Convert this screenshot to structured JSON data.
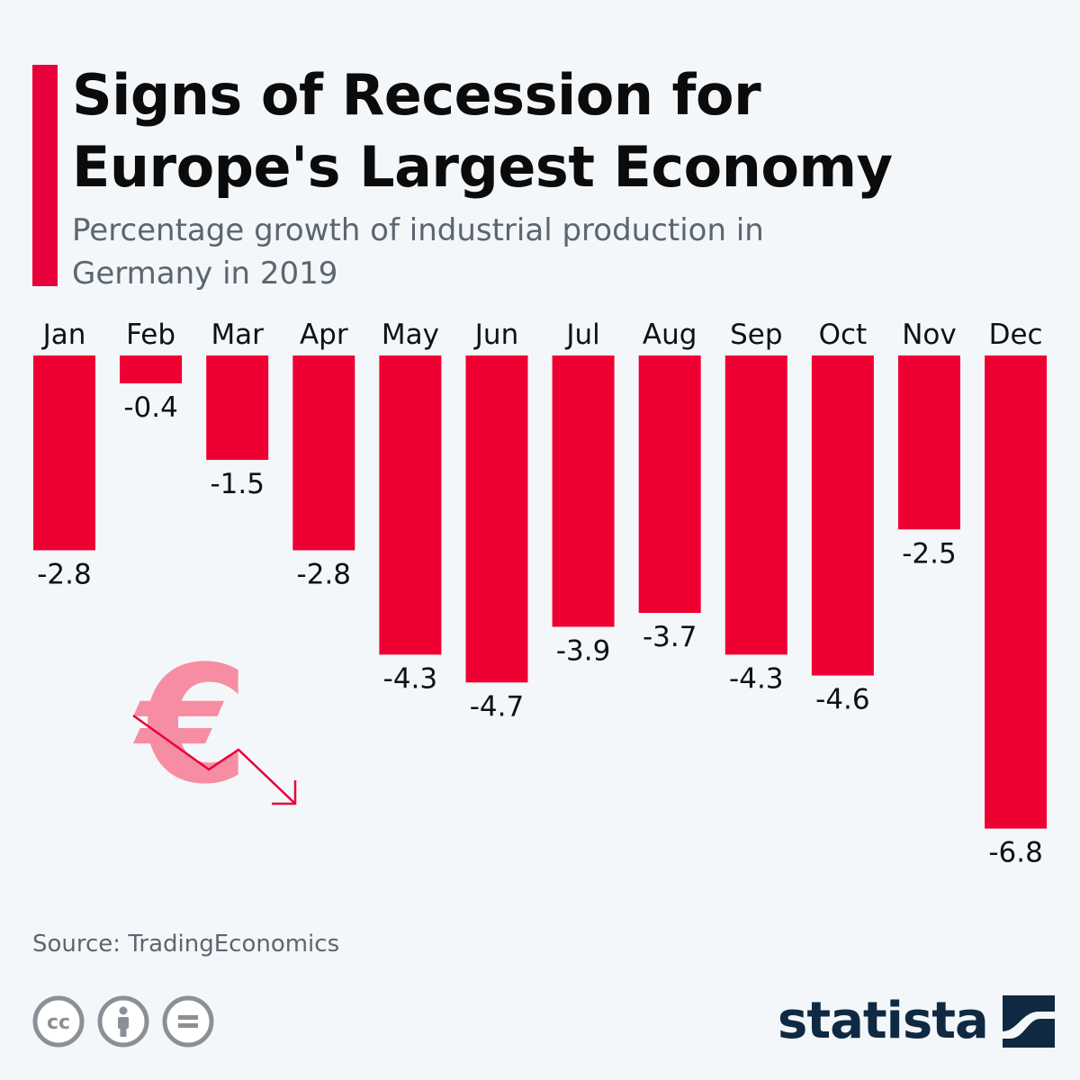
{
  "header": {
    "title_line1": "Signs of Recession for",
    "title_line2": "Europe's Largest Economy",
    "subtitle_line1": "Percentage growth of industrial production in",
    "subtitle_line2": "Germany in 2019"
  },
  "colors": {
    "accent": "#e8003a",
    "bar": "#ef0033",
    "euro_pink": "#f78da2",
    "brand_navy": "#0f2942",
    "background": "#f3f7fa"
  },
  "chart_data": {
    "type": "bar",
    "categories": [
      "Jan",
      "Feb",
      "Mar",
      "Apr",
      "May",
      "Jun",
      "Jul",
      "Aug",
      "Sep",
      "Oct",
      "Nov",
      "Dec"
    ],
    "values": [
      -2.8,
      -0.4,
      -1.5,
      -2.8,
      -4.3,
      -4.7,
      -3.9,
      -3.7,
      -4.3,
      -4.6,
      -2.5,
      -6.8
    ],
    "value_labels": [
      "-2.8",
      "-0.4",
      "-1.5",
      "-2.8",
      "-4.3",
      "-4.7",
      "-3.9",
      "-3.7",
      "-4.3",
      "-4.6",
      "-2.5",
      "-6.8"
    ],
    "title": "Signs of Recession for Europe's Largest Economy",
    "subtitle": "Percentage growth of industrial production in Germany in 2019",
    "ylim": [
      -6.8,
      0
    ],
    "grid": false,
    "legend": "none",
    "category_labels": "top",
    "data_labels": "below-bar"
  },
  "decoration": {
    "icon": "euro-decline-icon"
  },
  "footer": {
    "source": "Source: TradingEconomics",
    "license_icons": [
      "creative-commons-icon",
      "attribution-icon",
      "no-derivatives-icon"
    ],
    "brand": "statista",
    "brand_logo": "statista-logo-icon"
  }
}
